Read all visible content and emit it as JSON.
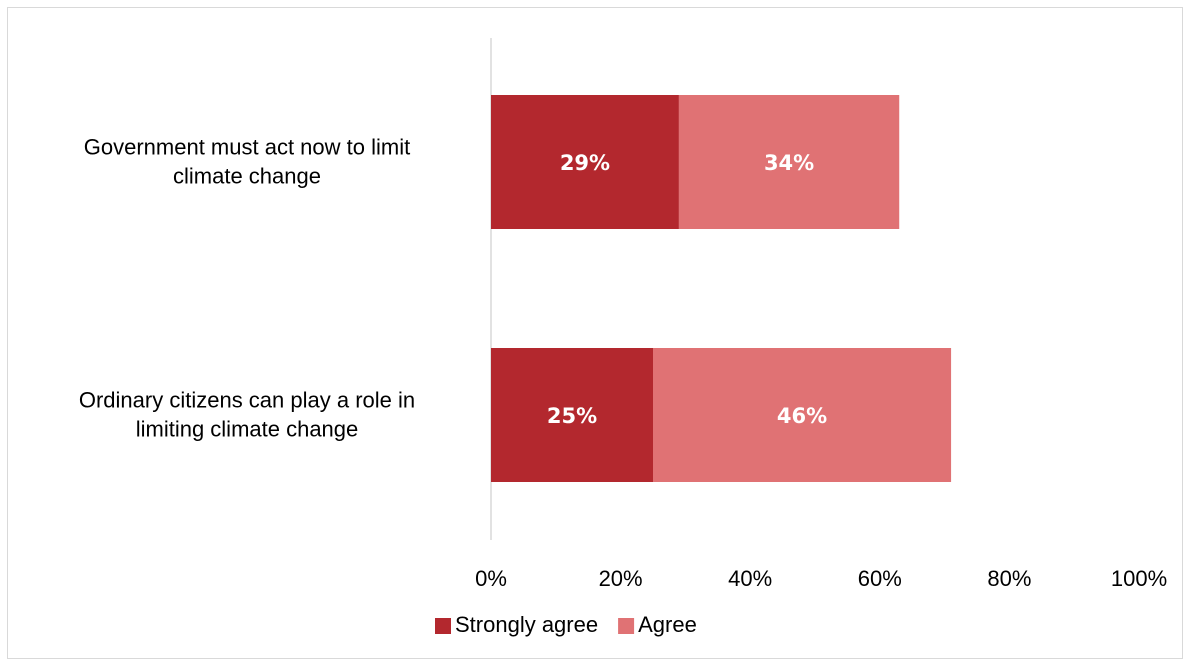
{
  "chart_data": {
    "type": "bar",
    "orientation": "horizontal",
    "stacked": true,
    "categories": [
      [
        "Government must act now to limit",
        "climate change"
      ],
      [
        "Ordinary citizens can play a role in",
        "limiting climate change"
      ]
    ],
    "series": [
      {
        "name": "Strongly agree",
        "values": [
          29,
          25
        ],
        "labels": [
          "29%",
          "25%"
        ],
        "color": "#b3282e"
      },
      {
        "name": "Agree",
        "values": [
          34,
          46
        ],
        "labels": [
          "34%",
          "46%"
        ],
        "color": "#e07274"
      }
    ],
    "xlim": [
      0,
      100
    ],
    "xticks": [
      "0%",
      "20%",
      "40%",
      "60%",
      "80%",
      "100%"
    ],
    "grid": false,
    "legend": "bottom"
  }
}
